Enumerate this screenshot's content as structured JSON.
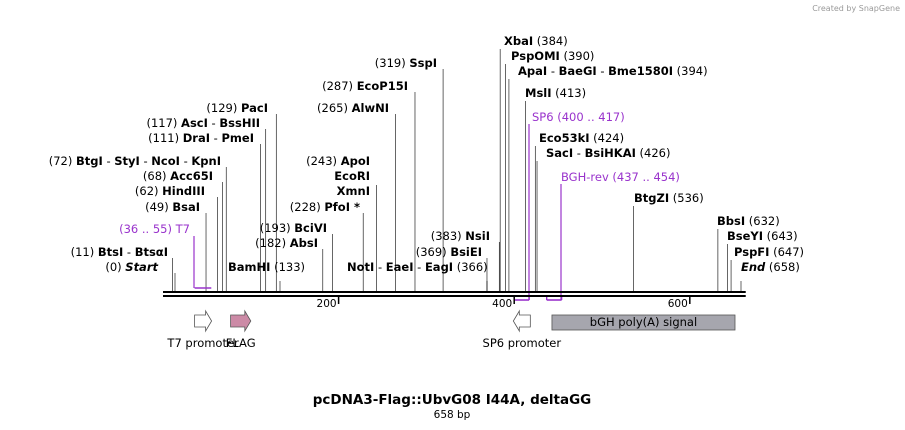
{
  "watermark": "Created by SnapGene",
  "plasmid": {
    "name": "pcDNA3-Flag::UbvG08 I44A, deltaGG",
    "length_label": "658 bp",
    "length": 658
  },
  "colors": {
    "site_line": "#000000",
    "primer": "#9933cc",
    "flag_fill": "#cc8aa6",
    "promoter_fill": "#ffffff",
    "polya_fill": "#a6a6ae",
    "text": "#000000"
  },
  "scale": {
    "ticks": [
      200,
      400,
      600
    ]
  },
  "sites": [
    {
      "pos": 0,
      "num": "(0)",
      "names": [
        "Start"
      ],
      "italic": true
    },
    {
      "pos": 11,
      "num": "(11)",
      "names": [
        "BtsI",
        "BtsαI"
      ]
    },
    {
      "pos": 49,
      "num": "(49)",
      "names": [
        "BsaI"
      ]
    },
    {
      "pos": 62,
      "num": "(62)",
      "names": [
        "HindIII"
      ]
    },
    {
      "pos": 68,
      "num": "(68)",
      "names": [
        "Acc65I"
      ]
    },
    {
      "pos": 72,
      "num": "(72)",
      "names": [
        "BtgI",
        "StyI",
        "NcoI",
        "KpnI"
      ]
    },
    {
      "pos": 111,
      "num": "(111)",
      "names": [
        "DraI",
        "PmeI"
      ]
    },
    {
      "pos": 117,
      "num": "(117)",
      "names": [
        "AscI",
        "BssHII"
      ]
    },
    {
      "pos": 129,
      "num": "(129)",
      "names": [
        "PacI"
      ]
    },
    {
      "pos": 133,
      "num": "(133)",
      "names": [
        "BamHI"
      ]
    },
    {
      "pos": 182,
      "num": "(182)",
      "names": [
        "AbsI"
      ]
    },
    {
      "pos": 193,
      "num": "(193)",
      "names": [
        "BciVI"
      ]
    },
    {
      "pos": 228,
      "num": "(228)",
      "names": [
        "PfoI *"
      ]
    },
    {
      "pos": 243,
      "num": "(243)",
      "names": [
        "ApoI",
        "EcoRI",
        "XmnI"
      ],
      "stacked": true
    },
    {
      "pos": 265,
      "num": "(265)",
      "names": [
        "AlwNI"
      ]
    },
    {
      "pos": 287,
      "num": "(287)",
      "names": [
        "EcoP15I"
      ]
    },
    {
      "pos": 319,
      "num": "(319)",
      "names": [
        "SspI"
      ]
    },
    {
      "pos": 366,
      "num": "(366)",
      "names": [
        "NotI",
        "EaeI",
        "EagI"
      ]
    },
    {
      "pos": 369,
      "num": "(369)",
      "names": [
        "BsiEI"
      ]
    },
    {
      "pos": 383,
      "num": "(383)",
      "names": [
        "NsiI"
      ]
    },
    {
      "pos": 384,
      "num": "(384)",
      "names": [
        "XbaI"
      ]
    },
    {
      "pos": 390,
      "num": "(390)",
      "names": [
        "PspOMI"
      ]
    },
    {
      "pos": 394,
      "num": "(394)",
      "names": [
        "ApaI",
        "BaeGI",
        "Bme1580I"
      ]
    },
    {
      "pos": 413,
      "num": "(413)",
      "names": [
        "MslI"
      ]
    },
    {
      "pos": 424,
      "num": "(424)",
      "names": [
        "Eco53kI"
      ]
    },
    {
      "pos": 426,
      "num": "(426)",
      "names": [
        "SacI",
        "BsiHKAI"
      ]
    },
    {
      "pos": 536,
      "num": "(536)",
      "names": [
        "BtgZI"
      ]
    },
    {
      "pos": 632,
      "num": "(632)",
      "names": [
        "BbsI"
      ]
    },
    {
      "pos": 643,
      "num": "(643)",
      "names": [
        "BseYI"
      ]
    },
    {
      "pos": 647,
      "num": "(647)",
      "names": [
        "PspFI"
      ]
    },
    {
      "pos": 658,
      "num": "(658)",
      "names": [
        "End"
      ],
      "italic": true
    }
  ],
  "primers": [
    {
      "name": "T7",
      "range": "(36 .. 55)",
      "start": 36,
      "end": 55,
      "direction": "forward"
    },
    {
      "name": "SP6",
      "range": "(400 .. 417)",
      "start": 400,
      "end": 417,
      "direction": "reverse"
    },
    {
      "name": "BGH-rev",
      "range": "(437 .. 454)",
      "start": 437,
      "end": 454,
      "direction": "reverse"
    }
  ],
  "features": [
    {
      "name": "T7 promoter",
      "start": 36,
      "end": 55,
      "type": "promoter",
      "direction": "forward"
    },
    {
      "name": "FLAG",
      "start": 77,
      "end": 100,
      "type": "cds",
      "direction": "forward"
    },
    {
      "name": "SP6 promoter",
      "start": 399,
      "end": 417,
      "type": "promoter",
      "direction": "reverse"
    },
    {
      "name": "bGH poly(A) signal",
      "start": 443,
      "end": 668,
      "type": "polya",
      "direction": "none"
    }
  ]
}
